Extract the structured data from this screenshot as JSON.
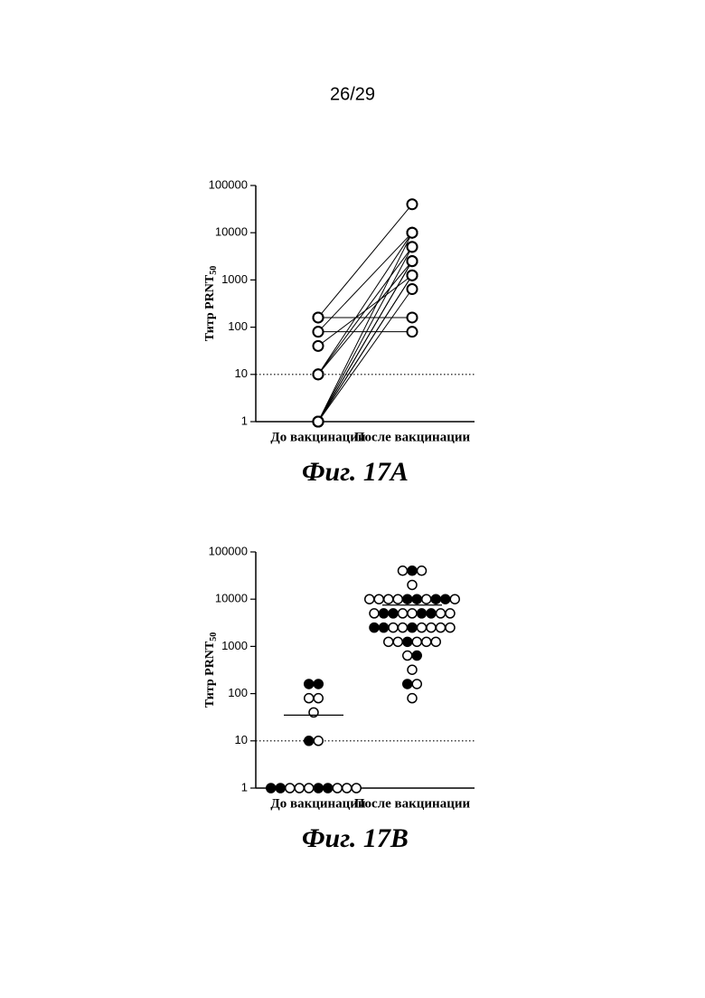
{
  "page_number": "26/29",
  "chart_data": [
    {
      "type": "paired",
      "caption": "Фиг. 17A",
      "ylabel": "Титр PRNT",
      "ylabel_subscript": "50",
      "categories": [
        "До вакцинации",
        "После вакцинации"
      ],
      "pre": [
        160,
        160,
        80,
        80,
        40,
        10,
        10,
        10,
        1,
        1,
        1,
        1,
        1,
        1,
        1
      ],
      "post": [
        40000,
        160,
        80,
        10000,
        1250,
        10000,
        5000,
        2500,
        10000,
        5000,
        2500,
        2500,
        1250,
        640,
        1250
      ],
      "ylim": [
        1,
        100000
      ],
      "yticks": [
        1,
        10,
        100,
        1000,
        10000,
        100000
      ],
      "log": true,
      "hline": 10,
      "color": "#000000"
    },
    {
      "type": "dotplot",
      "caption": "Фиг. 17B",
      "ylabel": "Титр PRNT",
      "ylabel_subscript": "50",
      "categories": [
        "До вакцинации",
        "После вакцинации"
      ],
      "groups": [
        {
          "median": 35,
          "values": [
            160,
            160,
            80,
            80,
            40,
            10,
            10,
            1,
            1,
            1,
            1,
            1,
            1,
            1,
            1,
            1,
            1
          ],
          "fills": [
            "#000",
            "#000",
            "#fff",
            "#fff",
            "#fff",
            "#000",
            "#fff",
            "#000",
            "#000",
            "#fff",
            "#fff",
            "#fff",
            "#000",
            "#000",
            "#fff",
            "#fff",
            "#fff"
          ]
        },
        {
          "median": 7500,
          "values": [
            40000,
            40000,
            40000,
            20000,
            10000,
            10000,
            10000,
            10000,
            10000,
            10000,
            10000,
            10000,
            10000,
            10000,
            5000,
            5000,
            5000,
            5000,
            5000,
            5000,
            5000,
            5000,
            5000,
            2500,
            2500,
            2500,
            2500,
            2500,
            2500,
            2500,
            2500,
            2500,
            1250,
            1250,
            1250,
            1250,
            1250,
            1250,
            640,
            640,
            320,
            160,
            160,
            80
          ],
          "fills": [
            "#fff",
            "#000",
            "#fff",
            "#fff",
            "#fff",
            "#fff",
            "#fff",
            "#fff",
            "#000",
            "#000",
            "#fff",
            "#000",
            "#000",
            "#fff",
            "#fff",
            "#000",
            "#000",
            "#fff",
            "#fff",
            "#000",
            "#000",
            "#fff",
            "#fff",
            "#000",
            "#000",
            "#fff",
            "#fff",
            "#000",
            "#fff",
            "#fff",
            "#fff",
            "#fff",
            "#fff",
            "#fff",
            "#000",
            "#fff",
            "#fff",
            "#fff",
            "#fff",
            "#000",
            "#fff",
            "#000",
            "#fff",
            "#fff"
          ]
        }
      ],
      "ylim": [
        1,
        100000
      ],
      "yticks": [
        1,
        10,
        100,
        1000,
        10000,
        100000
      ],
      "log": true,
      "hline": 10,
      "color": "#000000"
    }
  ]
}
